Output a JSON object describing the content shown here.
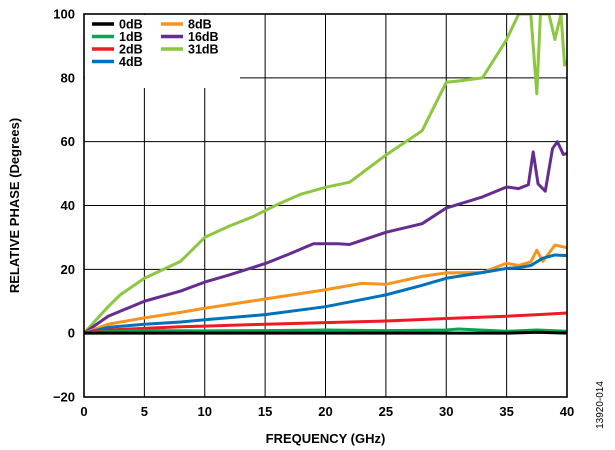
{
  "chart_data": {
    "type": "line",
    "title": "",
    "xlabel": "FREQUENCY (GHz)",
    "ylabel": "RELATIVE PHASE (Degrees)",
    "xlim": [
      0,
      40
    ],
    "ylim": [
      -20,
      100
    ],
    "xticks": [
      "0",
      "5",
      "10",
      "15",
      "20",
      "25",
      "30",
      "35",
      "40"
    ],
    "yticks": [
      "100",
      "80",
      "60",
      "40",
      "20",
      "0",
      "−20"
    ],
    "grid": true,
    "legend_position": "top-left",
    "figure_id": "13920-014",
    "series": [
      {
        "name": "0dB",
        "color": "#000000",
        "x": [
          0,
          5,
          10,
          15,
          20,
          25,
          30,
          35,
          37.5,
          40
        ],
        "y": [
          0,
          0,
          0,
          0,
          0,
          0,
          0,
          0,
          0.3,
          0
        ]
      },
      {
        "name": "1dB",
        "color": "#00a651",
        "x": [
          0,
          2,
          5,
          10,
          15,
          20,
          25,
          30,
          31,
          35,
          37.5,
          40
        ],
        "y": [
          0,
          0.5,
          0.8,
          0.7,
          0.8,
          1.0,
          0.8,
          1.0,
          1.3,
          0.6,
          1.0,
          0.6
        ]
      },
      {
        "name": "2dB",
        "color": "#ed1c24",
        "x": [
          0,
          2,
          5,
          8,
          10,
          15,
          20,
          25,
          30,
          35,
          38,
          40
        ],
        "y": [
          0,
          1.0,
          1.5,
          2.0,
          2.2,
          2.8,
          3.3,
          3.8,
          4.6,
          5.3,
          5.9,
          6.3
        ]
      },
      {
        "name": "4dB",
        "color": "#0072bc",
        "x": [
          0,
          2,
          5,
          8,
          10,
          15,
          20,
          25,
          28,
          30,
          33,
          35,
          36,
          37,
          38,
          39,
          40
        ],
        "y": [
          0,
          1.8,
          2.8,
          3.5,
          4.2,
          5.8,
          8.3,
          12.0,
          15.0,
          17.2,
          19.0,
          20.3,
          20.5,
          21.2,
          23.5,
          24.5,
          24.3
        ]
      },
      {
        "name": "8dB",
        "color": "#f7941d",
        "x": [
          0,
          2,
          5,
          8,
          10,
          15,
          20,
          23,
          25,
          28,
          30,
          33,
          35,
          36,
          37,
          37.5,
          38,
          38.5,
          39,
          40
        ],
        "y": [
          0,
          2.8,
          4.8,
          6.5,
          7.8,
          10.7,
          13.6,
          15.6,
          15.3,
          17.8,
          18.9,
          19.0,
          21.9,
          21.2,
          22.3,
          26.0,
          22.5,
          25.0,
          27.6,
          26.8
        ]
      },
      {
        "name": "16dB",
        "color": "#662d91",
        "x": [
          0,
          2,
          5,
          8,
          10,
          12,
          15,
          17,
          19,
          21,
          22,
          25,
          28,
          30,
          33,
          35,
          36,
          36.8,
          37.2,
          37.6,
          38.2,
          38.8,
          39.2,
          39.7,
          40
        ],
        "y": [
          0,
          5.3,
          10.0,
          13.2,
          16.0,
          18.2,
          21.8,
          24.8,
          28.0,
          28.0,
          27.8,
          31.6,
          34.3,
          39.2,
          42.7,
          45.8,
          45.3,
          46.5,
          56.8,
          46.8,
          44.5,
          57.8,
          60.0,
          56.0,
          56.3
        ]
      },
      {
        "name": "31dB",
        "color": "#8dc63f",
        "x": [
          0,
          2,
          3,
          5,
          8,
          10,
          12,
          14,
          16,
          18,
          20,
          22,
          25,
          28,
          30,
          31,
          33,
          35,
          36,
          36.6,
          37,
          37.5,
          37.8,
          38.2,
          38.5,
          39,
          39.5,
          39.8,
          40
        ],
        "y": [
          0,
          8.3,
          12.0,
          17.2,
          22.5,
          30.0,
          33.5,
          36.5,
          40.3,
          43.6,
          45.7,
          47.3,
          55.8,
          63.4,
          78.6,
          79.0,
          80.0,
          92.0,
          100,
          100,
          100,
          75.0,
          100,
          100,
          100,
          92.0,
          100,
          84.0,
          85.0
        ]
      }
    ]
  }
}
